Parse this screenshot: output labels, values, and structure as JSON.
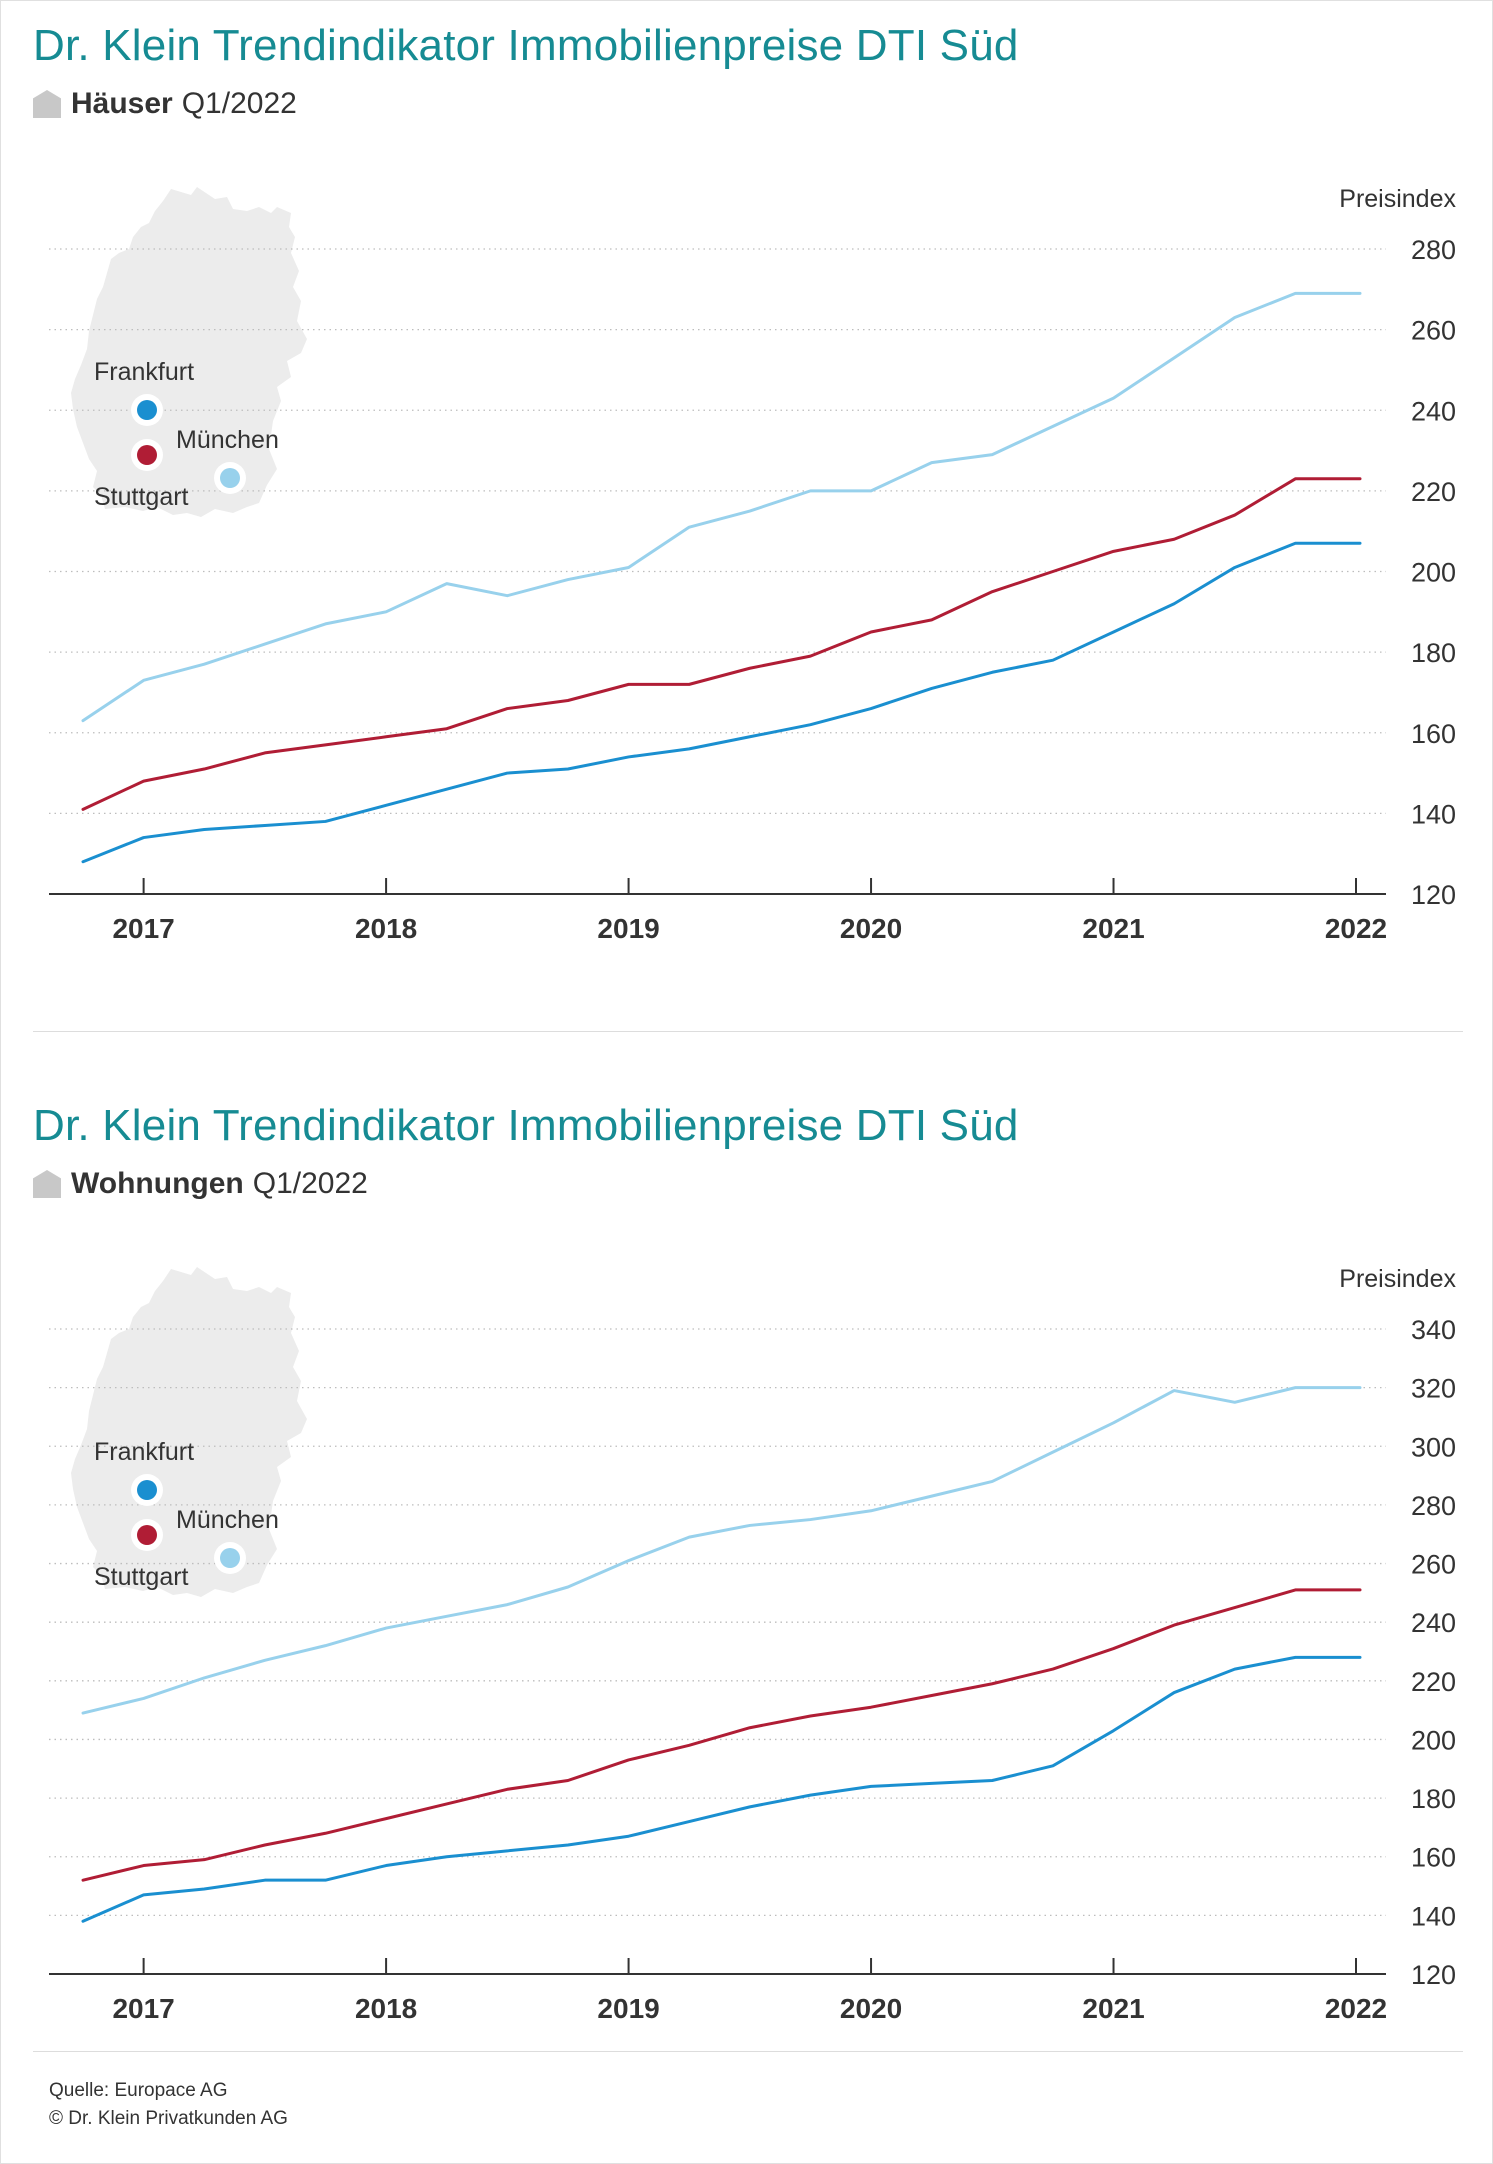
{
  "colors": {
    "title": "#168b93",
    "frankfurt": "#1a8fd0",
    "stuttgart": "#b01d35",
    "muenchen": "#98d1ec"
  },
  "charts": [
    {
      "title": "Dr. Klein Trendindikator Immobilienpreise DTI Süd",
      "subtitle_bold": "Häuser",
      "subtitle_period": "Q1/2022",
      "icon": "house-icon",
      "map": {
        "labels": {
          "frankfurt": "Frankfurt",
          "muenchen": "München",
          "stuttgart": "Stuttgart"
        }
      },
      "chart_data": {
        "type": "line",
        "ylabel": "Preisindex",
        "ylim": [
          120,
          280
        ],
        "yticks": [
          120,
          140,
          160,
          180,
          200,
          220,
          240,
          260,
          280
        ],
        "x_tick_labels": [
          "2017",
          "2018",
          "2019",
          "2020",
          "2021",
          "2022"
        ],
        "grid": true,
        "x": [
          "Q4 2016",
          "Q1 2017",
          "Q2 2017",
          "Q3 2017",
          "Q4 2017",
          "Q1 2018",
          "Q2 2018",
          "Q3 2018",
          "Q4 2018",
          "Q1 2019",
          "Q2 2019",
          "Q3 2019",
          "Q4 2019",
          "Q1 2020",
          "Q2 2020",
          "Q3 2020",
          "Q4 2020",
          "Q1 2021",
          "Q2 2021",
          "Q3 2021",
          "Q4 2021",
          "Q1 2022"
        ],
        "series": [
          {
            "name": "Frankfurt",
            "color": "#1a8fd0",
            "values": [
              128,
              134,
              136,
              137,
              138,
              142,
              146,
              150,
              151,
              154,
              156,
              159,
              162,
              166,
              171,
              175,
              178,
              185,
              192,
              201,
              207,
              207
            ]
          },
          {
            "name": "Stuttgart",
            "color": "#b01d35",
            "values": [
              141,
              148,
              151,
              155,
              157,
              159,
              161,
              166,
              168,
              172,
              172,
              176,
              179,
              185,
              188,
              195,
              200,
              205,
              208,
              214,
              223,
              223
            ]
          },
          {
            "name": "München",
            "color": "#98d1ec",
            "values": [
              163,
              173,
              177,
              182,
              187,
              190,
              197,
              194,
              198,
              201,
              211,
              215,
              220,
              220,
              227,
              229,
              236,
              243,
              253,
              263,
              269,
              269
            ]
          }
        ]
      }
    },
    {
      "title": "Dr. Klein Trendindikator Immobilienpreise DTI Süd",
      "subtitle_bold": "Wohnungen",
      "subtitle_period": "Q1/2022",
      "icon": "house-icon",
      "map": {
        "labels": {
          "frankfurt": "Frankfurt",
          "muenchen": "München",
          "stuttgart": "Stuttgart"
        }
      },
      "chart_data": {
        "type": "line",
        "ylabel": "Preisindex",
        "ylim": [
          120,
          340
        ],
        "yticks": [
          120,
          140,
          160,
          180,
          200,
          220,
          240,
          260,
          280,
          300,
          320,
          340
        ],
        "x_tick_labels": [
          "2017",
          "2018",
          "2019",
          "2020",
          "2021",
          "2022"
        ],
        "grid": true,
        "x": [
          "Q4 2016",
          "Q1 2017",
          "Q2 2017",
          "Q3 2017",
          "Q4 2017",
          "Q1 2018",
          "Q2 2018",
          "Q3 2018",
          "Q4 2018",
          "Q1 2019",
          "Q2 2019",
          "Q3 2019",
          "Q4 2019",
          "Q1 2020",
          "Q2 2020",
          "Q3 2020",
          "Q4 2020",
          "Q1 2021",
          "Q2 2021",
          "Q3 2021",
          "Q4 2021",
          "Q1 2022"
        ],
        "series": [
          {
            "name": "Frankfurt",
            "color": "#1a8fd0",
            "values": [
              138,
              147,
              149,
              152,
              152,
              157,
              160,
              162,
              164,
              167,
              172,
              177,
              181,
              184,
              185,
              186,
              191,
              203,
              216,
              224,
              228,
              228
            ]
          },
          {
            "name": "Stuttgart",
            "color": "#b01d35",
            "values": [
              152,
              157,
              159,
              164,
              168,
              173,
              178,
              183,
              186,
              193,
              198,
              204,
              208,
              211,
              215,
              219,
              224,
              231,
              239,
              245,
              251,
              251
            ]
          },
          {
            "name": "München",
            "color": "#98d1ec",
            "values": [
              209,
              214,
              221,
              227,
              232,
              238,
              242,
              246,
              252,
              261,
              269,
              273,
              275,
              278,
              283,
              288,
              298,
              308,
              319,
              315,
              320,
              320
            ]
          }
        ]
      }
    }
  ],
  "footer": {
    "source": "Quelle: Europace AG",
    "copyright": "© Dr. Klein Privatkunden AG"
  }
}
